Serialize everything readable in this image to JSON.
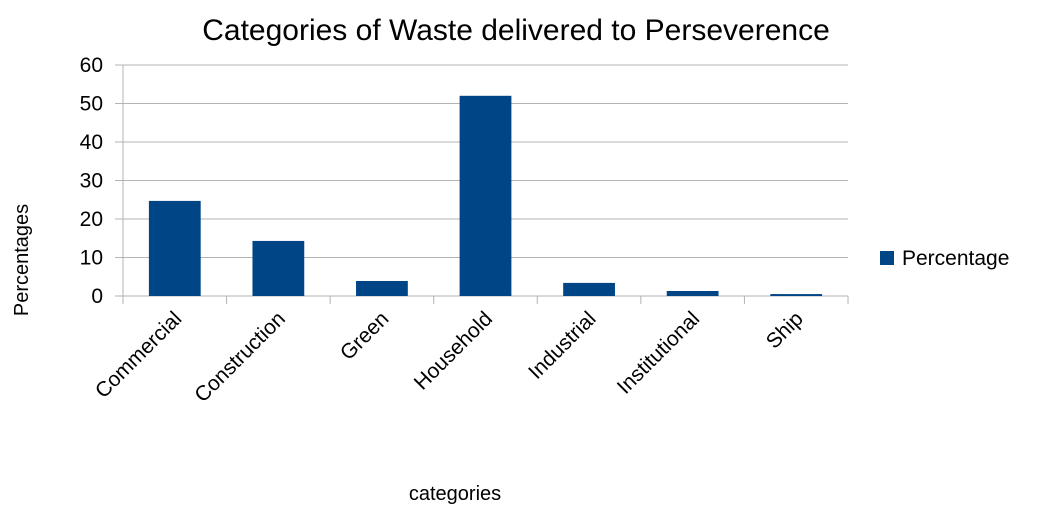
{
  "chart_data": {
    "type": "bar",
    "title": "Categories of Waste delivered to Perseverence",
    "x_label": "categories",
    "y_label": "Percentages",
    "categories": [
      "Commercial",
      "Construction",
      "Green",
      "Household",
      "Industrial",
      "Institutional",
      "Ship"
    ],
    "series": [
      {
        "name": "Percentage",
        "color": "#004586",
        "values": [
          24.7,
          14.3,
          3.9,
          52,
          3.4,
          1.3,
          0.5
        ]
      }
    ],
    "ylim": [
      0,
      60
    ],
    "yticks": [
      0,
      10,
      20,
      30,
      40,
      50,
      60
    ],
    "grid": true,
    "legend": "right"
  }
}
